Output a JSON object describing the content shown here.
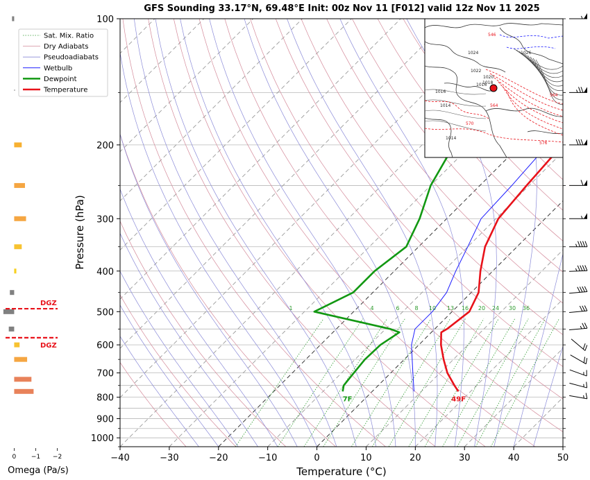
{
  "title": "GFS Sounding 33.17°N, 69.48°E Init: 00z Nov 11 [F012] valid 12z Nov 11 2025",
  "chart_data": [
    {
      "type": "skew-t",
      "xlabel": "Temperature (°C)",
      "ylabel": "Pressure (hPa)",
      "xlim": [
        -40,
        50
      ],
      "ylim": [
        1050,
        100
      ],
      "y_scale": "log",
      "x_ticks": [
        -40,
        -30,
        -20,
        -10,
        0,
        10,
        20,
        30,
        40,
        50
      ],
      "y_ticks": [
        100,
        200,
        300,
        400,
        500,
        600,
        700,
        800,
        900,
        1000
      ],
      "grid": true,
      "legend_position": "upper-left",
      "legend": [
        "Sat. Mix. Ratio",
        "Dry Adiabats",
        "Pseudoadiabats",
        "Wetbulb",
        "Dewpoint",
        "Temperature"
      ],
      "colors": {
        "temperature": "#e8121a",
        "dewpoint": "#129812",
        "wetbulb": "#1a1aff",
        "dry_adiabats": "#d48a9a",
        "pseudoadiabats": "#8a8ad8",
        "mixing_ratio": "#2c9a2c",
        "isotherms": "#9a9a9a",
        "isobars": "#b8b8b8",
        "dgz": "#e8121a"
      },
      "series": [
        {
          "name": "Temperature",
          "p": [
            775,
            750,
            700,
            650,
            600,
            560,
            550,
            500,
            450,
            400,
            350,
            300,
            250,
            200,
            175,
            150,
            125,
            100
          ],
          "t": [
            17.5,
            15.5,
            11.5,
            8.0,
            4.5,
            2.0,
            2.5,
            3.5,
            1.5,
            -2.5,
            -6.5,
            -9.5,
            -10.5,
            -11.5,
            -10.0,
            -8.5,
            -7.5,
            -7.0
          ]
        },
        {
          "name": "Dewpoint",
          "p": [
            775,
            750,
            700,
            650,
            600,
            560,
            550,
            500,
            450,
            400,
            350,
            300,
            250,
            200,
            150,
            100
          ],
          "t": [
            -6.0,
            -7.0,
            -7.5,
            -8.0,
            -7.8,
            -6.5,
            -9.0,
            -28.0,
            -24.0,
            -24.0,
            -22.5,
            -25.5,
            -30.0,
            -33.5,
            -36.5,
            -33.0
          ]
        },
        {
          "name": "Wetbulb",
          "p": [
            775,
            700,
            600,
            550,
            500,
            450,
            400,
            350,
            300,
            250,
            200
          ],
          "t": [
            8.5,
            4.5,
            -1.5,
            -4.0,
            -4.0,
            -5.0,
            -7.5,
            -10.0,
            -13.0,
            -13.5,
            -14.5
          ]
        }
      ],
      "mixing_ratio_labels": [
        "1",
        "4",
        "6",
        "8",
        "10",
        "13",
        "16",
        "20",
        "24",
        "30",
        "36"
      ],
      "surface_labels": {
        "temperature": "49F",
        "dewpoint": "7F"
      },
      "dgz_label": "DGZ"
    },
    {
      "type": "bar",
      "orientation": "horizontal",
      "xlabel": "Omega (Pa/s)",
      "x_ticks": [
        "0",
        "−1",
        "−2"
      ],
      "xlim": [
        0.4,
        -2.4
      ],
      "bars": [
        {
          "p": 775,
          "value": -0.9,
          "color": "#e8825a"
        },
        {
          "p": 725,
          "value": -0.8,
          "color": "#e8825a"
        },
        {
          "p": 650,
          "value": -0.6,
          "color": "#f5a642"
        },
        {
          "p": 600,
          "value": -0.25,
          "color": "#f7c230"
        },
        {
          "p": 550,
          "value": 0.25,
          "color": "#808080"
        },
        {
          "p": 500,
          "value": 0.5,
          "color": "#808080"
        },
        {
          "p": 450,
          "value": 0.2,
          "color": "#808080"
        },
        {
          "p": 400,
          "value": -0.1,
          "color": "#f7d020"
        },
        {
          "p": 350,
          "value": -0.35,
          "color": "#f7c230"
        },
        {
          "p": 300,
          "value": -0.55,
          "color": "#f5a642"
        },
        {
          "p": 250,
          "value": -0.5,
          "color": "#f5a642"
        },
        {
          "p": 200,
          "value": -0.35,
          "color": "#f7b030"
        },
        {
          "p": 100,
          "value": 0.1,
          "color": "#808080"
        }
      ],
      "dgz_bounds_hpa": [
        492,
        577
      ]
    }
  ],
  "wind_barbs": [
    {
      "p": 800,
      "speed_kt": 15,
      "dir": 280
    },
    {
      "p": 750,
      "speed_kt": 15,
      "dir": 285
    },
    {
      "p": 700,
      "speed_kt": 15,
      "dir": 290
    },
    {
      "p": 650,
      "speed_kt": 20,
      "dir": 300
    },
    {
      "p": 600,
      "speed_kt": 20,
      "dir": 310
    },
    {
      "p": 550,
      "speed_kt": 25,
      "dir": 265
    },
    {
      "p": 500,
      "speed_kt": 30,
      "dir": 265
    },
    {
      "p": 450,
      "speed_kt": 40,
      "dir": 265
    },
    {
      "p": 400,
      "speed_kt": 45,
      "dir": 268
    },
    {
      "p": 350,
      "speed_kt": 45,
      "dir": 270
    },
    {
      "p": 300,
      "speed_kt": 55,
      "dir": 270
    },
    {
      "p": 250,
      "speed_kt": 60,
      "dir": 270
    },
    {
      "p": 200,
      "speed_kt": 80,
      "dir": 270
    },
    {
      "p": 150,
      "speed_kt": 75,
      "dir": 270
    },
    {
      "p": 100,
      "speed_kt": 55,
      "dir": 270
    }
  ],
  "inset_map": {
    "isobar_labels": [
      "1024",
      "1026",
      "1022",
      "1020",
      "1018",
      "1016",
      "1016",
      "1014",
      "1014"
    ],
    "height_labels": [
      "546",
      "564",
      "570",
      "576",
      "564"
    ],
    "marker_color": "#e8121a"
  }
}
